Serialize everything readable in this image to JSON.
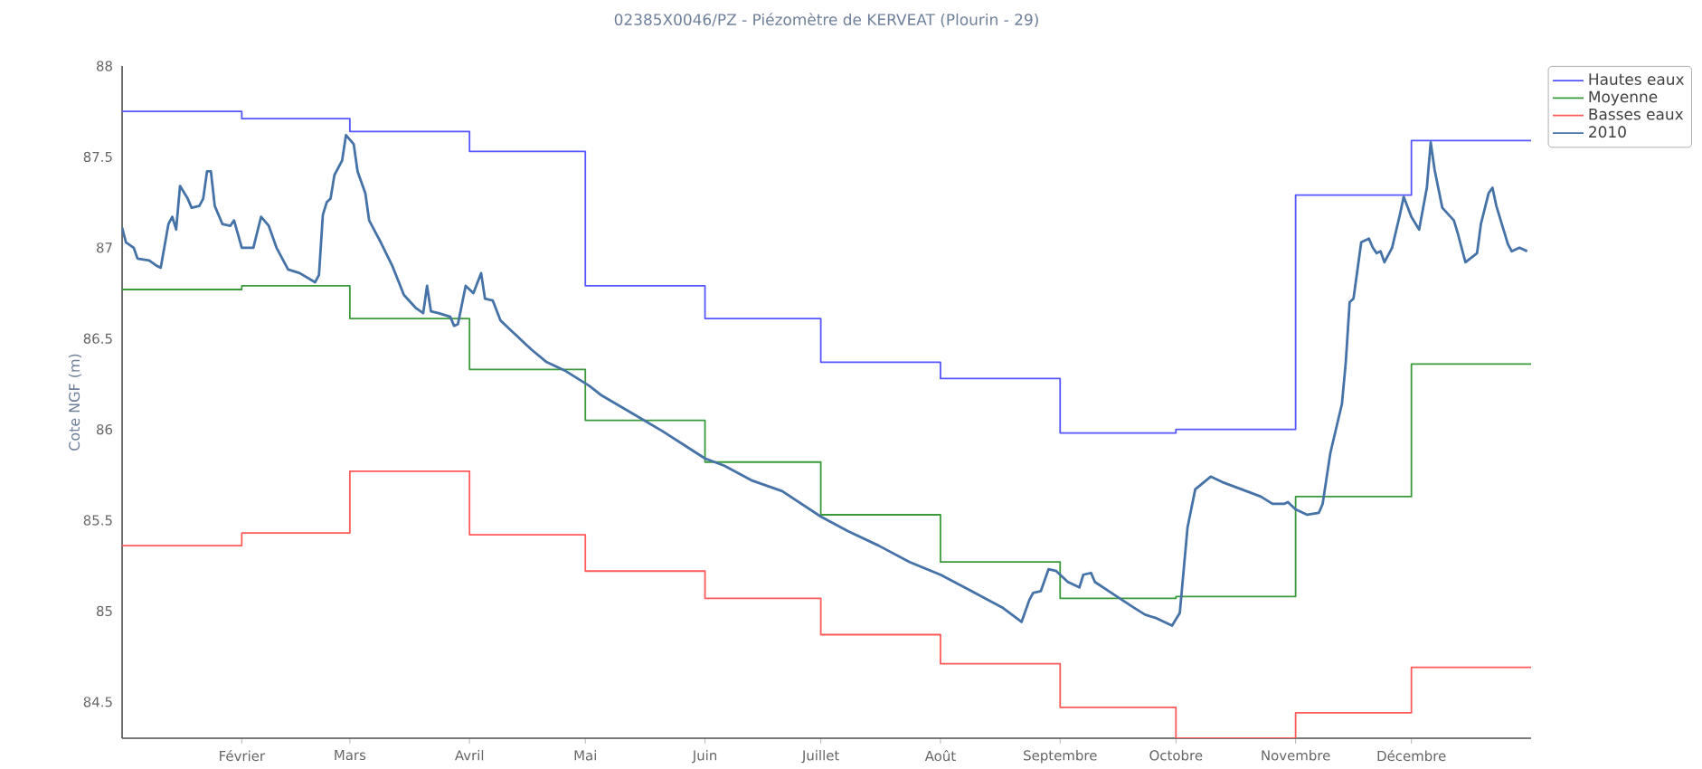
{
  "chart_data": {
    "type": "line",
    "title": "02385X0046/PZ - Piézomètre de KERVEAT (Plourin - 29)",
    "ylabel": "Cote NGF (m)",
    "xlim": [
      "2010-01-01",
      "2011-01-01"
    ],
    "ylim": [
      84.3,
      88
    ],
    "xticks": [
      {
        "value": "2010-02-01",
        "label": "Février"
      },
      {
        "value": "2010-03-01",
        "label": "Mars"
      },
      {
        "value": "2010-04-01",
        "label": "Avril"
      },
      {
        "value": "2010-05-01",
        "label": "Mai"
      },
      {
        "value": "2010-06-01",
        "label": "Juin"
      },
      {
        "value": "2010-07-01",
        "label": "Juillet"
      },
      {
        "value": "2010-08-01",
        "label": "Août"
      },
      {
        "value": "2010-09-01",
        "label": "Septembre"
      },
      {
        "value": "2010-10-01",
        "label": "Octobre"
      },
      {
        "value": "2010-11-01",
        "label": "Novembre"
      },
      {
        "value": "2010-12-01",
        "label": "Décembre"
      }
    ],
    "yticks": [
      84.5,
      85,
      85.5,
      86,
      86.5,
      87,
      87.5,
      88
    ],
    "legend": "top right",
    "grid": false,
    "marker": "none",
    "line_style": "solid",
    "series": [
      {
        "name": "Hautes eaux",
        "type": "step",
        "color": "#5555ff",
        "x": [
          "2010-01-01",
          "2010-02-01",
          "2010-03-01",
          "2010-04-01",
          "2010-05-01",
          "2010-06-01",
          "2010-07-01",
          "2010-08-01",
          "2010-09-01",
          "2010-10-01",
          "2010-11-01",
          "2010-12-01",
          "2011-01-01"
        ],
        "values": [
          87.75,
          87.71,
          87.64,
          87.53,
          86.79,
          86.61,
          86.37,
          86.28,
          85.98,
          86.0,
          87.29,
          87.59,
          87.59
        ]
      },
      {
        "name": "Moyenne",
        "type": "step",
        "color": "#3a9a3a",
        "x": [
          "2010-01-01",
          "2010-02-01",
          "2010-03-01",
          "2010-04-01",
          "2010-05-01",
          "2010-06-01",
          "2010-07-01",
          "2010-08-01",
          "2010-09-01",
          "2010-10-01",
          "2010-11-01",
          "2010-12-01",
          "2011-01-01"
        ],
        "values": [
          86.77,
          86.79,
          86.61,
          86.33,
          86.05,
          85.82,
          85.53,
          85.27,
          85.07,
          85.08,
          85.63,
          86.36,
          86.36
        ]
      },
      {
        "name": "Basses eaux",
        "type": "step",
        "color": "#ff5a5a",
        "x": [
          "2010-01-01",
          "2010-02-01",
          "2010-03-01",
          "2010-04-01",
          "2010-05-01",
          "2010-06-01",
          "2010-07-01",
          "2010-08-01",
          "2010-09-01",
          "2010-10-01",
          "2010-11-01",
          "2010-12-01",
          "2011-01-01"
        ],
        "values": [
          85.36,
          85.43,
          85.77,
          85.42,
          85.22,
          85.07,
          84.87,
          84.71,
          84.47,
          84.3,
          84.44,
          84.69,
          84.69
        ]
      },
      {
        "name": "2010",
        "type": "line",
        "color": "#4572a7",
        "x": [
          "2010-01-01",
          "2010-01-02",
          "2010-01-04",
          "2010-01-05",
          "2010-01-08",
          "2010-01-10",
          "2010-01-11",
          "2010-01-13",
          "2010-01-14",
          "2010-01-15",
          "2010-01-16",
          "2010-01-18",
          "2010-01-19",
          "2010-01-21",
          "2010-01-22",
          "2010-01-23",
          "2010-01-24",
          "2010-01-25",
          "2010-01-27",
          "2010-01-29",
          "2010-01-30",
          "2010-02-01",
          "2010-02-04",
          "2010-02-06",
          "2010-02-08",
          "2010-02-10",
          "2010-02-13",
          "2010-02-16",
          "2010-02-20",
          "2010-02-21",
          "2010-02-22",
          "2010-02-23",
          "2010-02-24",
          "2010-02-25",
          "2010-02-27",
          "2010-02-28",
          "2010-03-02",
          "2010-03-03",
          "2010-03-05",
          "2010-03-06",
          "2010-03-09",
          "2010-03-12",
          "2010-03-15",
          "2010-03-18",
          "2010-03-20",
          "2010-03-21",
          "2010-03-22",
          "2010-03-24",
          "2010-03-27",
          "2010-03-28",
          "2010-03-29",
          "2010-03-31",
          "2010-04-02",
          "2010-04-04",
          "2010-04-05",
          "2010-04-07",
          "2010-04-09",
          "2010-04-12",
          "2010-04-17",
          "2010-04-21",
          "2010-04-26",
          "2010-05-02",
          "2010-05-05",
          "2010-05-13",
          "2010-05-21",
          "2010-06-01",
          "2010-06-06",
          "2010-06-13",
          "2010-06-21",
          "2010-07-01",
          "2010-07-08",
          "2010-07-16",
          "2010-07-24",
          "2010-08-01",
          "2010-08-09",
          "2010-08-17",
          "2010-08-22",
          "2010-08-24",
          "2010-08-25",
          "2010-08-27",
          "2010-08-29",
          "2010-08-31",
          "2010-09-03",
          "2010-09-06",
          "2010-09-07",
          "2010-09-09",
          "2010-09-10",
          "2010-09-15",
          "2010-09-20",
          "2010-09-23",
          "2010-09-26",
          "2010-09-30",
          "2010-10-02",
          "2010-10-04",
          "2010-10-06",
          "2010-10-10",
          "2010-10-13",
          "2010-10-18",
          "2010-10-23",
          "2010-10-26",
          "2010-10-29",
          "2010-10-30",
          "2010-11-01",
          "2010-11-04",
          "2010-11-07",
          "2010-11-08",
          "2010-11-10",
          "2010-11-13",
          "2010-11-14",
          "2010-11-15",
          "2010-11-16",
          "2010-11-18",
          "2010-11-20",
          "2010-11-21",
          "2010-11-22",
          "2010-11-23",
          "2010-11-24",
          "2010-11-26",
          "2010-11-28",
          "2010-11-29",
          "2010-12-01",
          "2010-12-03",
          "2010-12-05",
          "2010-12-06",
          "2010-12-07",
          "2010-12-09",
          "2010-12-12",
          "2010-12-13",
          "2010-12-15",
          "2010-12-18",
          "2010-12-19",
          "2010-12-21",
          "2010-12-22",
          "2010-12-23",
          "2010-12-26",
          "2010-12-27",
          "2010-12-29",
          "2010-12-31"
        ],
        "values": [
          87.11,
          87.03,
          87.0,
          86.94,
          86.93,
          86.9,
          86.89,
          87.13,
          87.17,
          87.1,
          87.34,
          87.27,
          87.22,
          87.23,
          87.27,
          87.42,
          87.42,
          87.23,
          87.13,
          87.12,
          87.15,
          87.0,
          87.0,
          87.17,
          87.12,
          87.0,
          86.88,
          86.86,
          86.81,
          86.85,
          87.18,
          87.25,
          87.27,
          87.4,
          87.48,
          87.62,
          87.57,
          87.42,
          87.3,
          87.15,
          87.03,
          86.9,
          86.74,
          86.67,
          86.64,
          86.79,
          86.65,
          86.64,
          86.62,
          86.57,
          86.58,
          86.79,
          86.75,
          86.86,
          86.72,
          86.71,
          86.6,
          86.54,
          86.44,
          86.37,
          86.32,
          86.24,
          86.19,
          86.09,
          85.99,
          85.84,
          85.8,
          85.72,
          85.66,
          85.52,
          85.44,
          85.36,
          85.27,
          85.2,
          85.11,
          85.02,
          84.94,
          85.06,
          85.1,
          85.11,
          85.23,
          85.22,
          85.16,
          85.13,
          85.2,
          85.21,
          85.16,
          85.09,
          85.02,
          84.98,
          84.96,
          84.92,
          84.99,
          85.46,
          85.67,
          85.74,
          85.71,
          85.67,
          85.63,
          85.59,
          85.59,
          85.6,
          85.56,
          85.53,
          85.54,
          85.59,
          85.87,
          86.14,
          86.37,
          86.7,
          86.72,
          87.03,
          87.05,
          87.0,
          86.97,
          86.98,
          86.92,
          87.0,
          87.18,
          87.28,
          87.17,
          87.1,
          87.33,
          87.58,
          87.43,
          87.22,
          87.15,
          87.08,
          86.92,
          86.97,
          87.13,
          87.3,
          87.33,
          87.23,
          87.02,
          86.98,
          87.0,
          86.98
        ]
      }
    ]
  }
}
